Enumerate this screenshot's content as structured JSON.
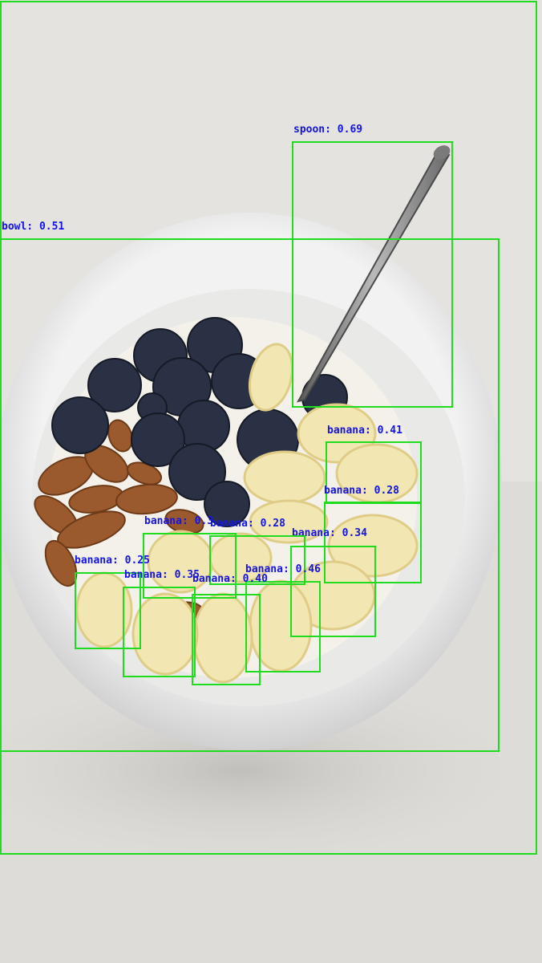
{
  "colors": {
    "box": "#1fdc1f",
    "label": "#1414e6"
  },
  "detections": [
    {
      "label": "bowl: 0.51"
    },
    {
      "label": "spoon: 0.69"
    },
    {
      "label": "banana: 0.41"
    },
    {
      "label": "banana: 0.28"
    },
    {
      "label": "banana: 0.34"
    },
    {
      "label": "banana: 0.28"
    },
    {
      "label": "banana: 0.46"
    },
    {
      "label": "banana: 0.25"
    },
    {
      "label": "banana: 0.35"
    },
    {
      "label": "banana: 0.40"
    },
    {
      "label": "banana: 0.3"
    }
  ]
}
